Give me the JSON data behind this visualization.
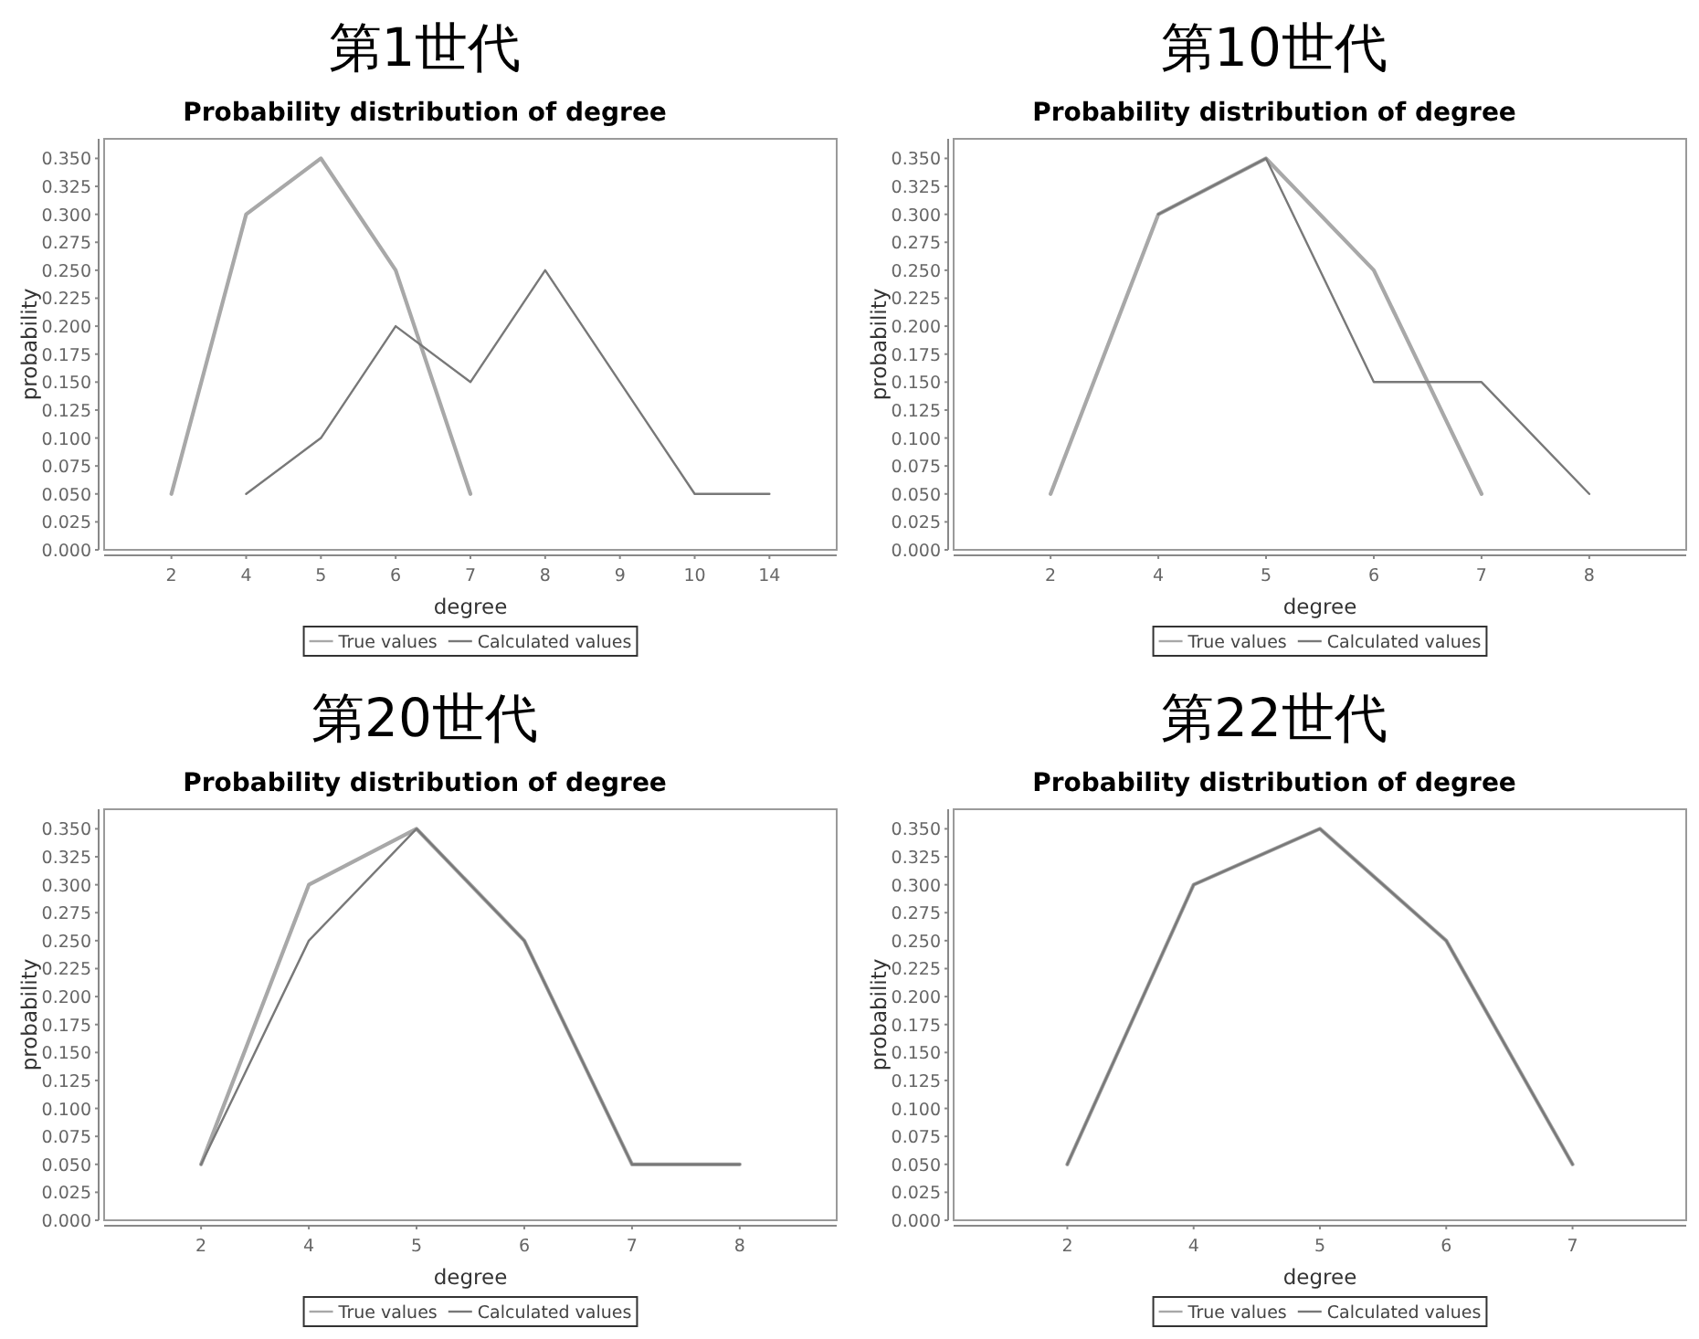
{
  "chart_data": [
    {
      "type": "line",
      "title": "第1世代",
      "subtitle": "Probability distribution of degree",
      "xlabel": "degree",
      "ylabel": "probability",
      "legend": "bottom",
      "categories": [
        "2",
        "4",
        "5",
        "6",
        "7",
        "8",
        "9",
        "10",
        "14"
      ],
      "ylim": [
        0,
        0.3675
      ],
      "yticks": [
        {
          "value": 0,
          "label": "0.000"
        },
        {
          "value": 0.025,
          "label": "0.025"
        },
        {
          "value": 0.05,
          "label": "0.050"
        },
        {
          "value": 0.075,
          "label": "0.075"
        },
        {
          "value": 0.1,
          "label": "0.100"
        },
        {
          "value": 0.125,
          "label": "0.125"
        },
        {
          "value": 0.15,
          "label": "0.150"
        },
        {
          "value": 0.175,
          "label": "0.175"
        },
        {
          "value": 0.2,
          "label": "0.200"
        },
        {
          "value": 0.225,
          "label": "0.225"
        },
        {
          "value": 0.25,
          "label": "0.250"
        },
        {
          "value": 0.275,
          "label": "0.275"
        },
        {
          "value": 0.3,
          "label": "0.300"
        },
        {
          "value": 0.325,
          "label": "0.325"
        },
        {
          "value": 0.35,
          "label": "0.350"
        }
      ],
      "series": [
        {
          "name": "True values",
          "color": "#a8a8a8",
          "values": [
            0.05,
            0.3,
            0.35,
            0.25,
            0.05,
            null,
            null,
            null,
            null
          ]
        },
        {
          "name": "Calculated values",
          "color": "#787878",
          "values": [
            null,
            0.05,
            0.1,
            0.2,
            0.15,
            0.25,
            0.15,
            0.05,
            0.05
          ]
        }
      ]
    },
    {
      "type": "line",
      "title": "第10世代",
      "subtitle": "Probability distribution of degree",
      "xlabel": "degree",
      "ylabel": "probability",
      "legend": "bottom",
      "categories": [
        "2",
        "4",
        "5",
        "6",
        "7",
        "8"
      ],
      "ylim": [
        0,
        0.3675
      ],
      "yticks": [
        {
          "value": 0,
          "label": "0.000"
        },
        {
          "value": 0.025,
          "label": "0.025"
        },
        {
          "value": 0.05,
          "label": "0.050"
        },
        {
          "value": 0.075,
          "label": "0.075"
        },
        {
          "value": 0.1,
          "label": "0.100"
        },
        {
          "value": 0.125,
          "label": "0.125"
        },
        {
          "value": 0.15,
          "label": "0.150"
        },
        {
          "value": 0.175,
          "label": "0.175"
        },
        {
          "value": 0.2,
          "label": "0.200"
        },
        {
          "value": 0.225,
          "label": "0.225"
        },
        {
          "value": 0.25,
          "label": "0.250"
        },
        {
          "value": 0.275,
          "label": "0.275"
        },
        {
          "value": 0.3,
          "label": "0.300"
        },
        {
          "value": 0.325,
          "label": "0.325"
        },
        {
          "value": 0.35,
          "label": "0.350"
        }
      ],
      "series": [
        {
          "name": "True values",
          "color": "#a8a8a8",
          "values": [
            0.05,
            0.3,
            0.35,
            0.25,
            0.05,
            null
          ]
        },
        {
          "name": "Calculated values",
          "color": "#787878",
          "values": [
            null,
            0.3,
            0.35,
            0.15,
            0.15,
            0.05
          ]
        }
      ]
    },
    {
      "type": "line",
      "title": "第20世代",
      "subtitle": "Probability distribution of degree",
      "xlabel": "degree",
      "ylabel": "probability",
      "legend": "bottom",
      "categories": [
        "2",
        "4",
        "5",
        "6",
        "7",
        "8"
      ],
      "ylim": [
        0,
        0.3675
      ],
      "yticks": [
        {
          "value": 0,
          "label": "0.000"
        },
        {
          "value": 0.025,
          "label": "0.025"
        },
        {
          "value": 0.05,
          "label": "0.050"
        },
        {
          "value": 0.075,
          "label": "0.075"
        },
        {
          "value": 0.1,
          "label": "0.100"
        },
        {
          "value": 0.125,
          "label": "0.125"
        },
        {
          "value": 0.15,
          "label": "0.150"
        },
        {
          "value": 0.175,
          "label": "0.175"
        },
        {
          "value": 0.2,
          "label": "0.200"
        },
        {
          "value": 0.225,
          "label": "0.225"
        },
        {
          "value": 0.25,
          "label": "0.250"
        },
        {
          "value": 0.275,
          "label": "0.275"
        },
        {
          "value": 0.3,
          "label": "0.300"
        },
        {
          "value": 0.325,
          "label": "0.325"
        },
        {
          "value": 0.35,
          "label": "0.350"
        }
      ],
      "series": [
        {
          "name": "True values",
          "color": "#a8a8a8",
          "values": [
            0.05,
            0.3,
            0.35,
            0.25,
            0.05,
            0.05
          ]
        },
        {
          "name": "Calculated values",
          "color": "#787878",
          "values": [
            0.05,
            0.25,
            0.35,
            0.25,
            0.05,
            0.05
          ]
        }
      ]
    },
    {
      "type": "line",
      "title": "第22世代",
      "subtitle": "Probability distribution of degree",
      "xlabel": "degree",
      "ylabel": "probability",
      "legend": "bottom",
      "categories": [
        "2",
        "4",
        "5",
        "6",
        "7"
      ],
      "ylim": [
        0,
        0.3675
      ],
      "yticks": [
        {
          "value": 0,
          "label": "0.000"
        },
        {
          "value": 0.025,
          "label": "0.025"
        },
        {
          "value": 0.05,
          "label": "0.050"
        },
        {
          "value": 0.075,
          "label": "0.075"
        },
        {
          "value": 0.1,
          "label": "0.100"
        },
        {
          "value": 0.125,
          "label": "0.125"
        },
        {
          "value": 0.15,
          "label": "0.150"
        },
        {
          "value": 0.175,
          "label": "0.175"
        },
        {
          "value": 0.2,
          "label": "0.200"
        },
        {
          "value": 0.225,
          "label": "0.225"
        },
        {
          "value": 0.25,
          "label": "0.250"
        },
        {
          "value": 0.275,
          "label": "0.275"
        },
        {
          "value": 0.3,
          "label": "0.300"
        },
        {
          "value": 0.325,
          "label": "0.325"
        },
        {
          "value": 0.35,
          "label": "0.350"
        }
      ],
      "series": [
        {
          "name": "True values",
          "color": "#a8a8a8",
          "values": [
            0.05,
            0.3,
            0.35,
            0.25,
            0.05
          ]
        },
        {
          "name": "Calculated values",
          "color": "#787878",
          "values": [
            0.05,
            0.3,
            0.35,
            0.25,
            0.05
          ]
        }
      ]
    }
  ]
}
